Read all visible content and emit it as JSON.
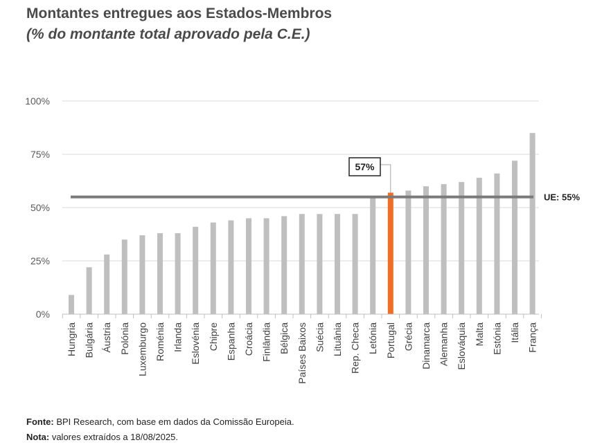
{
  "header": {
    "title": "Montantes entregues aos Estados-Membros",
    "subtitle": "(% do montante total aprovado pela C.E.)"
  },
  "footer": {
    "source_label": "Fonte:",
    "source_text": " BPI Research, com base em dados da Comissão Europeia.",
    "note_label": "Nota:",
    "note_text": " valores extraídos a 18/08/2025."
  },
  "colors": {
    "bar": "#bfbfbf",
    "highlight": "#f26d21",
    "reference": "#7a7a7a",
    "grid": "#d9d9d9"
  },
  "chart_data": {
    "type": "bar",
    "title": "Montantes entregues aos Estados-Membros",
    "subtitle": "(% do montante total aprovado pela C.E.)",
    "xlabel": "",
    "ylabel": "",
    "ylim": [
      0,
      100
    ],
    "yticks": [
      "0%",
      "25%",
      "50%",
      "75%",
      "100%"
    ],
    "ytick_values": [
      0,
      25,
      50,
      75,
      100
    ],
    "grid": true,
    "categories": [
      "Hungria",
      "Bulgária",
      "Áustria",
      "Polónia",
      "Luxemburgo",
      "Roménia",
      "Irlanda",
      "Eslovénia",
      "Chipre",
      "Espanha",
      "Croácia",
      "Finlândia",
      "Bélgica",
      "Países Baixos",
      "Suécia",
      "Lituânia",
      "Rep. Checa",
      "Letónia",
      "Portugal",
      "Grécia",
      "Dinamarca",
      "Alemanha",
      "Eslováquia",
      "Malta",
      "Estónia",
      "Itália",
      "França"
    ],
    "values": [
      9,
      22,
      28,
      35,
      37,
      38,
      38,
      41,
      43,
      44,
      45,
      45,
      46,
      47,
      47,
      47,
      47,
      55,
      57,
      58,
      60,
      61,
      62,
      64,
      66,
      72,
      85
    ],
    "highlight_category": "Portugal",
    "highlight_label": "57%",
    "reference_line": {
      "value": 55,
      "label": "UE: 55%"
    }
  }
}
